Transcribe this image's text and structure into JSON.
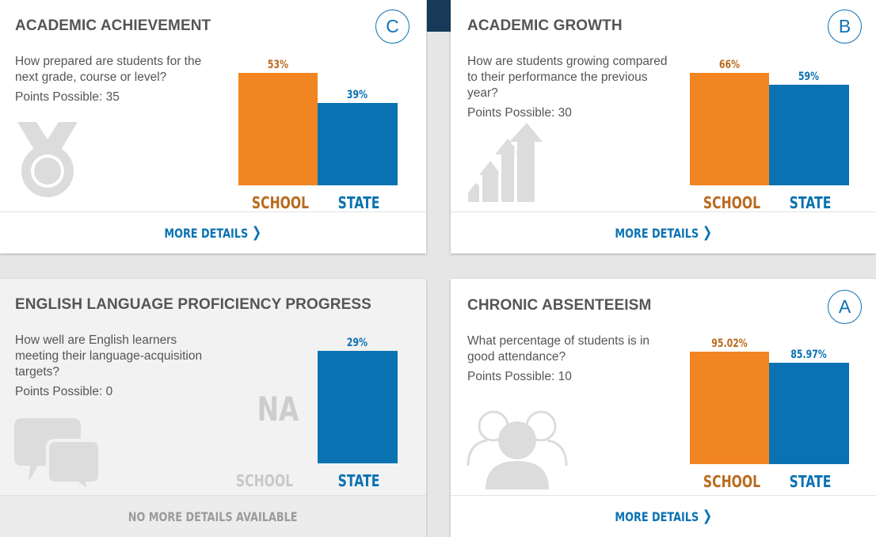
{
  "cards": {
    "achievement": {
      "title": "ACADEMIC ACHIEVEMENT",
      "grade": "C",
      "description": "How prepared are students for the next grade, course or level?",
      "points": "Points Possible: 35",
      "icon": "medal-icon",
      "school_value": "53%",
      "state_value": "39%",
      "school_label": "SCHOOL",
      "state_label": "STATE",
      "footer": "MORE DETAILS"
    },
    "growth": {
      "title": "ACADEMIC GROWTH",
      "grade": "B",
      "description": "How are students growing compared to their performance the previous year?",
      "points": "Points Possible: 30",
      "icon": "growth-arrows-icon",
      "school_value": "66%",
      "state_value": "59%",
      "school_label": "SCHOOL",
      "state_label": "STATE",
      "footer": "MORE DETAILS"
    },
    "elp": {
      "title": "ENGLISH LANGUAGE PROFICIENCY PROGRESS",
      "description": "How well are English learners meeting their language-acquisition targets?",
      "points": "Points Possible: 0",
      "icon": "speech-bubbles-icon",
      "school_value": "NA",
      "state_value": "29%",
      "school_label": "SCHOOL",
      "state_label": "STATE",
      "footer": "NO MORE DETAILS AVAILABLE"
    },
    "absenteeism": {
      "title": "CHRONIC ABSENTEEISM",
      "grade": "A",
      "description": "What percentage of students is in good attendance?",
      "points": "Points Possible: 10",
      "icon": "people-group-icon",
      "school_value": "95.02%",
      "state_value": "85.97%",
      "school_label": "SCHOOL",
      "state_label": "STATE",
      "footer": "MORE DETAILS"
    }
  },
  "colors": {
    "school": "#f08522",
    "state": "#0a72b3",
    "grade": "#0f71b2",
    "text": "#555555"
  }
}
